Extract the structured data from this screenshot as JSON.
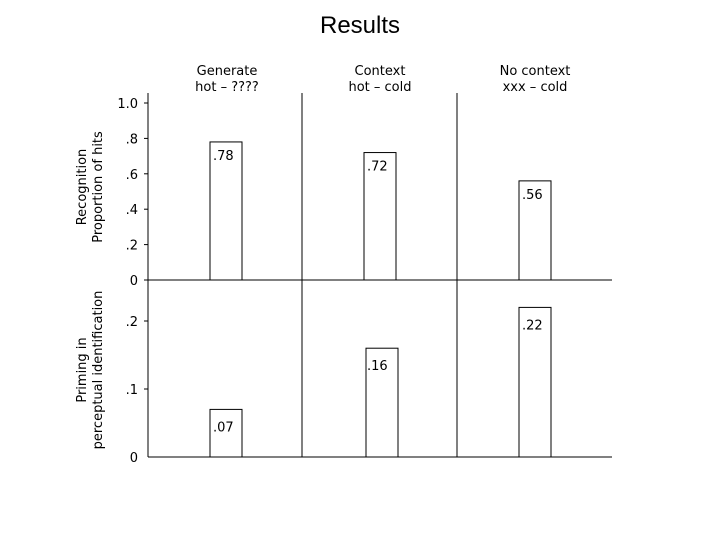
{
  "slide": {
    "title": "Results"
  },
  "colors": {
    "axis": "#000000",
    "bar_fill": "#ffffff",
    "text": "#000000"
  },
  "chart_data": [
    {
      "type": "bar",
      "title": "",
      "categories": [
        "Generate\nhot – ????",
        "Context\nhot – cold",
        "No context\nxxx – cold"
      ],
      "ylabel": "Recognition\nProportion of hits",
      "ylim": [
        0,
        1.0
      ],
      "yticks": [
        "0",
        ".2",
        ".4",
        ".6",
        ".8",
        "1.0"
      ],
      "series": [
        {
          "values": [
            0.78,
            0.72,
            0.56
          ],
          "labels": [
            ".78",
            ".72",
            ".56"
          ]
        }
      ]
    },
    {
      "type": "bar",
      "title": "",
      "categories": [
        "Generate",
        "Context",
        "No context"
      ],
      "ylabel": "Priming in\nperceptual identification",
      "ylim": [
        0,
        0.25
      ],
      "yticks": [
        "0",
        ".1",
        ".2"
      ],
      "series": [
        {
          "values": [
            0.07,
            0.16,
            0.22
          ],
          "labels": [
            ".07",
            ".16",
            ".22"
          ]
        }
      ]
    }
  ]
}
